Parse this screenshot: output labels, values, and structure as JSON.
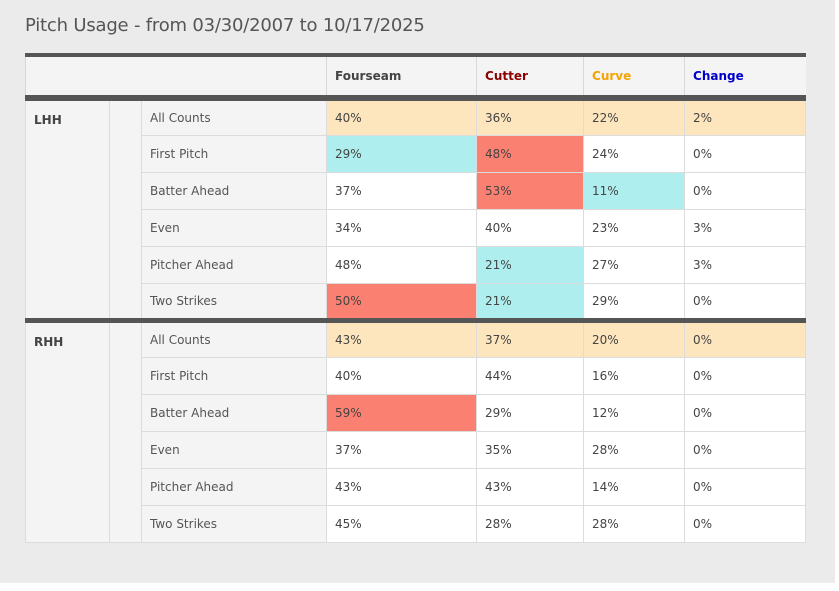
{
  "title": "Pitch Usage - from 03/30/2007 to 10/17/2025",
  "columns": [
    {
      "label": "Fourseam",
      "color": "#444444"
    },
    {
      "label": "Cutter",
      "color": "#8b0000"
    },
    {
      "label": "Curve",
      "color": "#f5a300"
    },
    {
      "label": "Change",
      "color": "#0000cd"
    }
  ],
  "groups": [
    {
      "hand": "LHH",
      "rows": [
        {
          "count": "All Counts",
          "values": [
            "40%",
            "36%",
            "22%",
            "2%"
          ],
          "flags": [
            "",
            "",
            "",
            ""
          ]
        },
        {
          "count": "First Pitch",
          "values": [
            "29%",
            "48%",
            "24%",
            "0%"
          ],
          "flags": [
            "lo",
            "hi",
            "",
            ""
          ]
        },
        {
          "count": "Batter Ahead",
          "values": [
            "37%",
            "53%",
            "11%",
            "0%"
          ],
          "flags": [
            "",
            "hi",
            "lo",
            ""
          ]
        },
        {
          "count": "Even",
          "values": [
            "34%",
            "40%",
            "23%",
            "3%"
          ],
          "flags": [
            "",
            "",
            "",
            ""
          ]
        },
        {
          "count": "Pitcher Ahead",
          "values": [
            "48%",
            "21%",
            "27%",
            "3%"
          ],
          "flags": [
            "",
            "lo",
            "",
            ""
          ]
        },
        {
          "count": "Two Strikes",
          "values": [
            "50%",
            "21%",
            "29%",
            "0%"
          ],
          "flags": [
            "hi",
            "lo",
            "",
            ""
          ]
        }
      ]
    },
    {
      "hand": "RHH",
      "rows": [
        {
          "count": "All Counts",
          "values": [
            "43%",
            "37%",
            "20%",
            "0%"
          ],
          "flags": [
            "",
            "",
            "",
            ""
          ]
        },
        {
          "count": "First Pitch",
          "values": [
            "40%",
            "44%",
            "16%",
            "0%"
          ],
          "flags": [
            "",
            "",
            "",
            ""
          ]
        },
        {
          "count": "Batter Ahead",
          "values": [
            "59%",
            "29%",
            "12%",
            "0%"
          ],
          "flags": [
            "hi",
            "",
            "",
            ""
          ]
        },
        {
          "count": "Even",
          "values": [
            "37%",
            "35%",
            "28%",
            "0%"
          ],
          "flags": [
            "",
            "",
            "",
            ""
          ]
        },
        {
          "count": "Pitcher Ahead",
          "values": [
            "43%",
            "43%",
            "14%",
            "0%"
          ],
          "flags": [
            "",
            "",
            "",
            ""
          ]
        },
        {
          "count": "Two Strikes",
          "values": [
            "45%",
            "28%",
            "28%",
            "0%"
          ],
          "flags": [
            "",
            "",
            "",
            ""
          ]
        }
      ]
    }
  ]
}
